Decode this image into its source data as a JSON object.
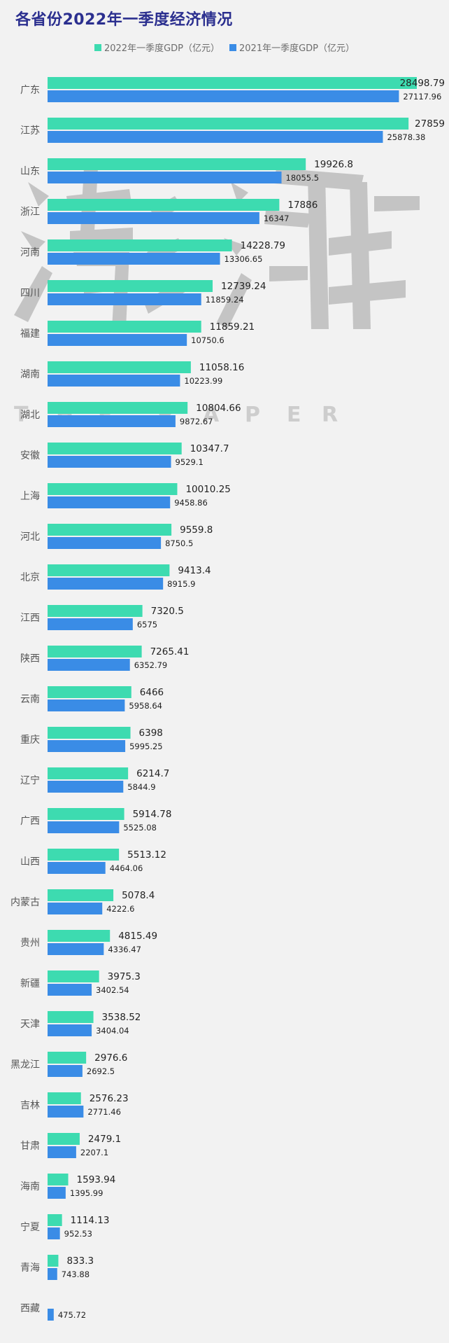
{
  "title": "各省份2022年一季度经济情况",
  "colors": {
    "s2022": "#3ddbb0",
    "s2021": "#3a8ce6",
    "background": "#f2f2f2",
    "title": "#2b2f8f"
  },
  "watermark": {
    "text": "THE PAPER"
  },
  "chart_data": {
    "type": "bar",
    "orientation": "horizontal",
    "title": "各省份2022年一季度经济情况",
    "xlim": [
      0,
      28498.79
    ],
    "grid": false,
    "legend_position": "top",
    "categories": [
      "广东",
      "江苏",
      "山东",
      "浙江",
      "河南",
      "四川",
      "福建",
      "湖南",
      "湖北",
      "安徽",
      "上海",
      "河北",
      "北京",
      "江西",
      "陕西",
      "云南",
      "重庆",
      "辽宁",
      "广西",
      "山西",
      "内蒙古",
      "贵州",
      "新疆",
      "天津",
      "黑龙江",
      "吉林",
      "甘肃",
      "海南",
      "宁夏",
      "青海",
      "西藏"
    ],
    "series": [
      {
        "name": "2022年一季度GDP（亿元）",
        "labels": [
          "28498.79",
          "27859",
          "19926.8",
          "17886",
          "14228.79",
          "12739.24",
          "11859.21",
          "11058.16",
          "10804.66",
          "10347.7",
          "10010.25",
          "9559.8",
          "9413.4",
          "7320.5",
          "7265.41",
          "6466",
          "6398",
          "6214.7",
          "5914.78",
          "5513.12",
          "5078.4",
          "4815.49",
          "3975.3",
          "3538.52",
          "2976.6",
          "2576.23",
          "2479.1",
          "1593.94",
          "1114.13",
          "833.3",
          ""
        ],
        "values": [
          28498.79,
          27859,
          19926.8,
          17886,
          14228.79,
          12739.24,
          11859.21,
          11058.16,
          10804.66,
          10347.7,
          10010.25,
          9559.8,
          9413.4,
          7320.5,
          7265.41,
          6466,
          6398,
          6214.7,
          5914.78,
          5513.12,
          5078.4,
          4815.49,
          3975.3,
          3538.52,
          2976.6,
          2576.23,
          2479.1,
          1593.94,
          1114.13,
          833.3,
          null
        ]
      },
      {
        "name": "2021年一季度GDP（亿元）",
        "labels": [
          "27117.96",
          "25878.38",
          "18055.5",
          "16347",
          "13306.65",
          "11859.24",
          "10750.6",
          "10223.99",
          "9872.67",
          "9529.1",
          "9458.86",
          "8750.5",
          "8915.9",
          "6575",
          "6352.79",
          "5958.64",
          "5995.25",
          "5844.9",
          "5525.08",
          "4464.06",
          "4222.6",
          "4336.47",
          "3402.54",
          "3404.04",
          "2692.5",
          "2771.46",
          "2207.1",
          "1395.99",
          "952.53",
          "743.88",
          "475.72"
        ],
        "values": [
          27117.96,
          25878.38,
          18055.5,
          16347,
          13306.65,
          11859.24,
          10750.6,
          10223.99,
          9872.67,
          9529.1,
          9458.86,
          8750.5,
          8915.9,
          6575,
          6352.79,
          5958.64,
          5995.25,
          5844.9,
          5525.08,
          4464.06,
          4222.6,
          4336.47,
          3402.54,
          3404.04,
          2692.5,
          2771.46,
          2207.1,
          1395.99,
          952.53,
          743.88,
          475.72
        ]
      }
    ]
  }
}
